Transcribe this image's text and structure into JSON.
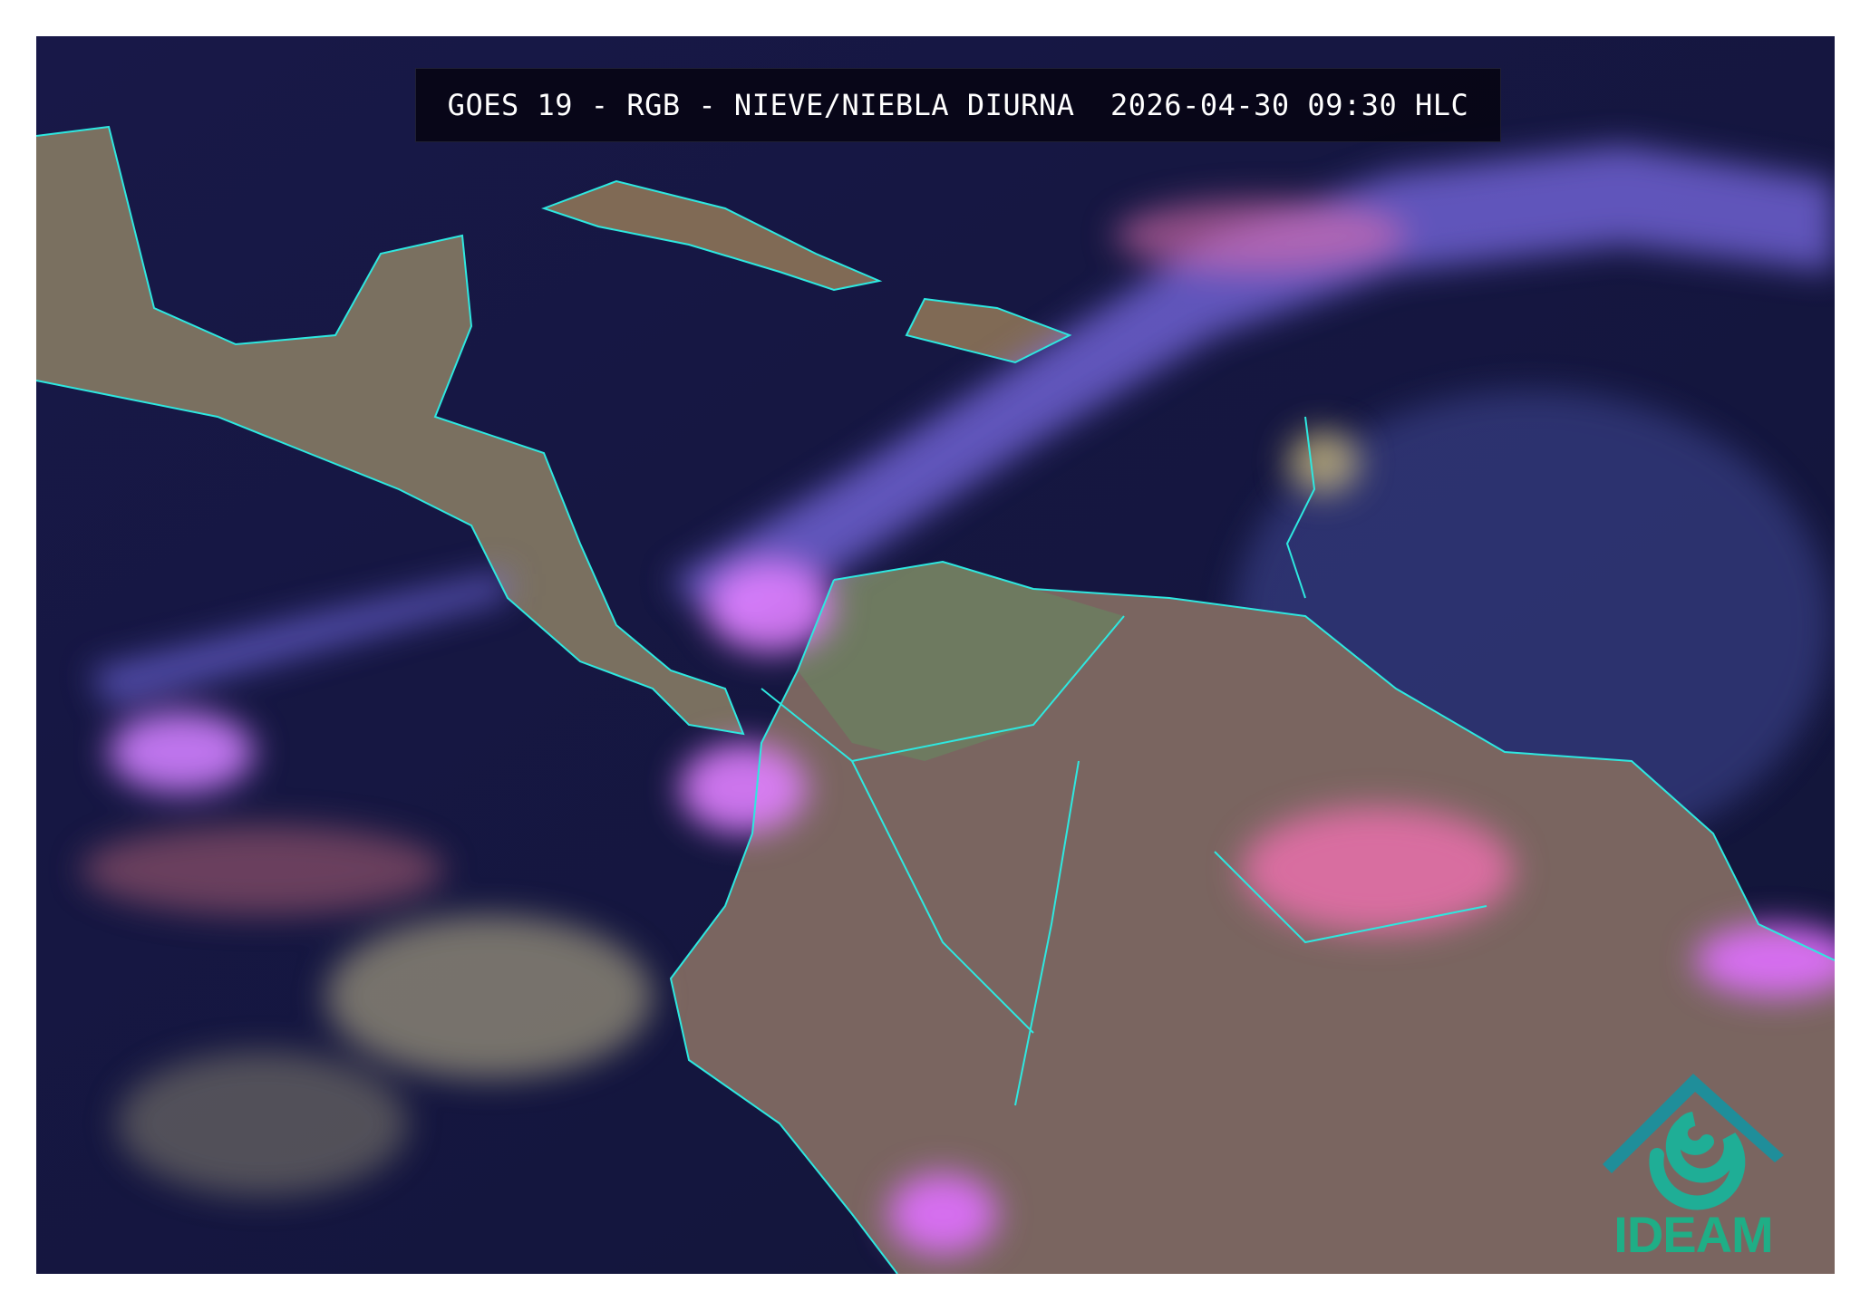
{
  "title": "GOES 19 - RGB - NIEVE/NIEBLA DIURNA  2026-04-30 09:30 HLC",
  "logo": {
    "text": "IDEAM",
    "color": "#1fae86"
  },
  "colors": {
    "ocean": "#15163f",
    "land": "#7a6a5a",
    "coastline": "#2ee8e0",
    "cloud_ice": "#c060ff",
    "cloud_low": "#e0d48a"
  }
}
